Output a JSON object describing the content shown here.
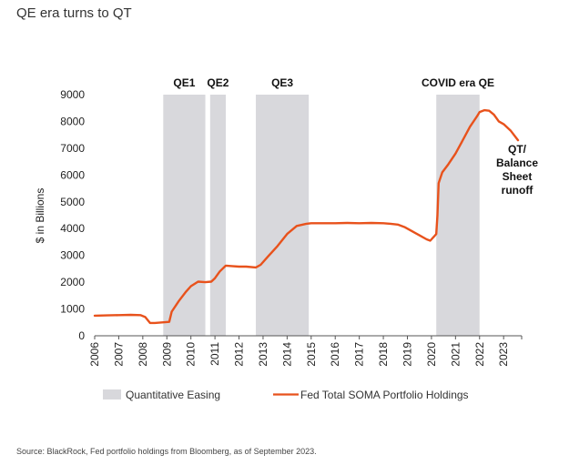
{
  "title": "QE era turns to QT",
  "source": "Source: BlackRock, Fed portfolio holdings from Bloomberg, as of September 2023.",
  "chart_data": {
    "type": "line",
    "title": "QE era turns to QT",
    "ylabel": "$ in Billions",
    "xlabel": "",
    "ylim": [
      0,
      9000
    ],
    "xlim": [
      2006,
      2023.75
    ],
    "yticks": [
      "0",
      "1000",
      "2000",
      "3000",
      "4000",
      "5000",
      "6000",
      "7000",
      "8000",
      "9000"
    ],
    "xticks": [
      "2006",
      "2007",
      "2008",
      "2009",
      "2010",
      "2011",
      "2012",
      "2013",
      "2014",
      "2015",
      "2016",
      "2017",
      "2018",
      "2019",
      "2020",
      "2021",
      "2022",
      "2023"
    ],
    "shaded_periods": [
      {
        "label": "QE1",
        "start": 2008.85,
        "end": 2010.6
      },
      {
        "label": "QE2",
        "start": 2010.8,
        "end": 2011.45
      },
      {
        "label": "QE3",
        "start": 2012.7,
        "end": 2014.9
      },
      {
        "label": "COVID era QE",
        "start": 2020.2,
        "end": 2022.0
      }
    ],
    "annotation": [
      "QT/",
      "Balance",
      "Sheet",
      "runoff"
    ],
    "legend": {
      "shaded": "Quantitative Easing",
      "line": "Fed Total SOMA Portfolio Holdings"
    },
    "colors": {
      "line": "#e8521c",
      "shade": "#d8d8dc"
    },
    "series": [
      {
        "name": "Fed Total SOMA Portfolio Holdings",
        "x": [
          2006.0,
          2006.5,
          2007.0,
          2007.5,
          2007.9,
          2008.1,
          2008.3,
          2008.5,
          2008.8,
          2009.1,
          2009.2,
          2009.5,
          2009.8,
          2010.0,
          2010.3,
          2010.6,
          2010.85,
          2011.0,
          2011.2,
          2011.45,
          2011.7,
          2012.0,
          2012.3,
          2012.7,
          2012.9,
          2013.2,
          2013.6,
          2014.0,
          2014.4,
          2014.8,
          2015.0,
          2015.5,
          2016.0,
          2016.5,
          2017.0,
          2017.5,
          2018.0,
          2018.3,
          2018.6,
          2018.9,
          2019.2,
          2019.5,
          2019.8,
          2019.95,
          2020.1,
          2020.2,
          2020.25,
          2020.3,
          2020.45,
          2020.7,
          2021.0,
          2021.3,
          2021.6,
          2021.9,
          2022.0,
          2022.2,
          2022.4,
          2022.6,
          2022.8,
          2023.0,
          2023.3,
          2023.6
        ],
        "values": [
          750,
          760,
          770,
          780,
          770,
          700,
          480,
          480,
          500,
          520,
          900,
          1300,
          1650,
          1850,
          2020,
          2000,
          2020,
          2150,
          2400,
          2620,
          2600,
          2580,
          2580,
          2550,
          2650,
          2950,
          3350,
          3800,
          4100,
          4180,
          4200,
          4200,
          4200,
          4210,
          4200,
          4210,
          4200,
          4180,
          4150,
          4050,
          3900,
          3750,
          3600,
          3550,
          3700,
          3800,
          4500,
          5700,
          6100,
          6400,
          6800,
          7300,
          7800,
          8200,
          8350,
          8420,
          8400,
          8250,
          8000,
          7900,
          7650,
          7300
        ]
      }
    ]
  }
}
